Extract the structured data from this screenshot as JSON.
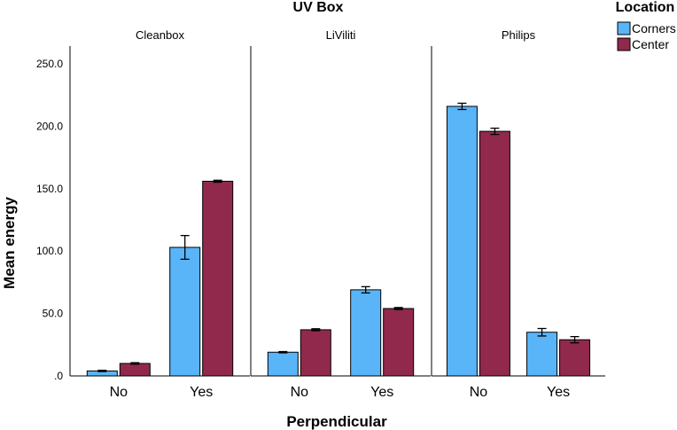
{
  "chart_data": {
    "type": "bar",
    "title": "UV Box",
    "xlabel": "Perpendicular",
    "ylabel": "Mean energy",
    "ylim": [
      0,
      260
    ],
    "y_ticks": [
      {
        "value": 0,
        "label": ".0"
      },
      {
        "value": 50,
        "label": "50.0"
      },
      {
        "value": 100,
        "label": "100.0"
      },
      {
        "value": 150,
        "label": "150.0"
      },
      {
        "value": 200,
        "label": "200.0"
      },
      {
        "value": 250,
        "label": "250.0"
      }
    ],
    "legend": {
      "title": "Location",
      "placement": "top-right",
      "items": [
        {
          "name": "Corners",
          "color": "#5AB4F8"
        },
        {
          "name": "Center",
          "color": "#91294D"
        }
      ]
    },
    "categories": [
      "No",
      "Yes"
    ],
    "series_names": [
      "Corners",
      "Center"
    ],
    "colors": {
      "Corners": "#5AB4F8",
      "Center": "#91294D"
    },
    "panels": [
      {
        "title": "Cleanbox",
        "values": {
          "No": {
            "Corners": {
              "mean": 4,
              "err": 0.5
            },
            "Center": {
              "mean": 10,
              "err": 0.6
            }
          },
          "Yes": {
            "Corners": {
              "mean": 103,
              "err": 9.5
            },
            "Center": {
              "mean": 156,
              "err": 0.8
            }
          }
        }
      },
      {
        "title": "LiViliti",
        "values": {
          "No": {
            "Corners": {
              "mean": 19,
              "err": 0.5
            },
            "Center": {
              "mean": 37,
              "err": 0.8
            }
          },
          "Yes": {
            "Corners": {
              "mean": 69,
              "err": 2.5
            },
            "Center": {
              "mean": 54,
              "err": 0.8
            }
          }
        }
      },
      {
        "title": "Philips",
        "values": {
          "No": {
            "Corners": {
              "mean": 216,
              "err": 2.5
            },
            "Center": {
              "mean": 196,
              "err": 2.5
            }
          },
          "Yes": {
            "Corners": {
              "mean": 35,
              "err": 3
            },
            "Center": {
              "mean": 29,
              "err": 2.5
            }
          }
        }
      }
    ]
  }
}
